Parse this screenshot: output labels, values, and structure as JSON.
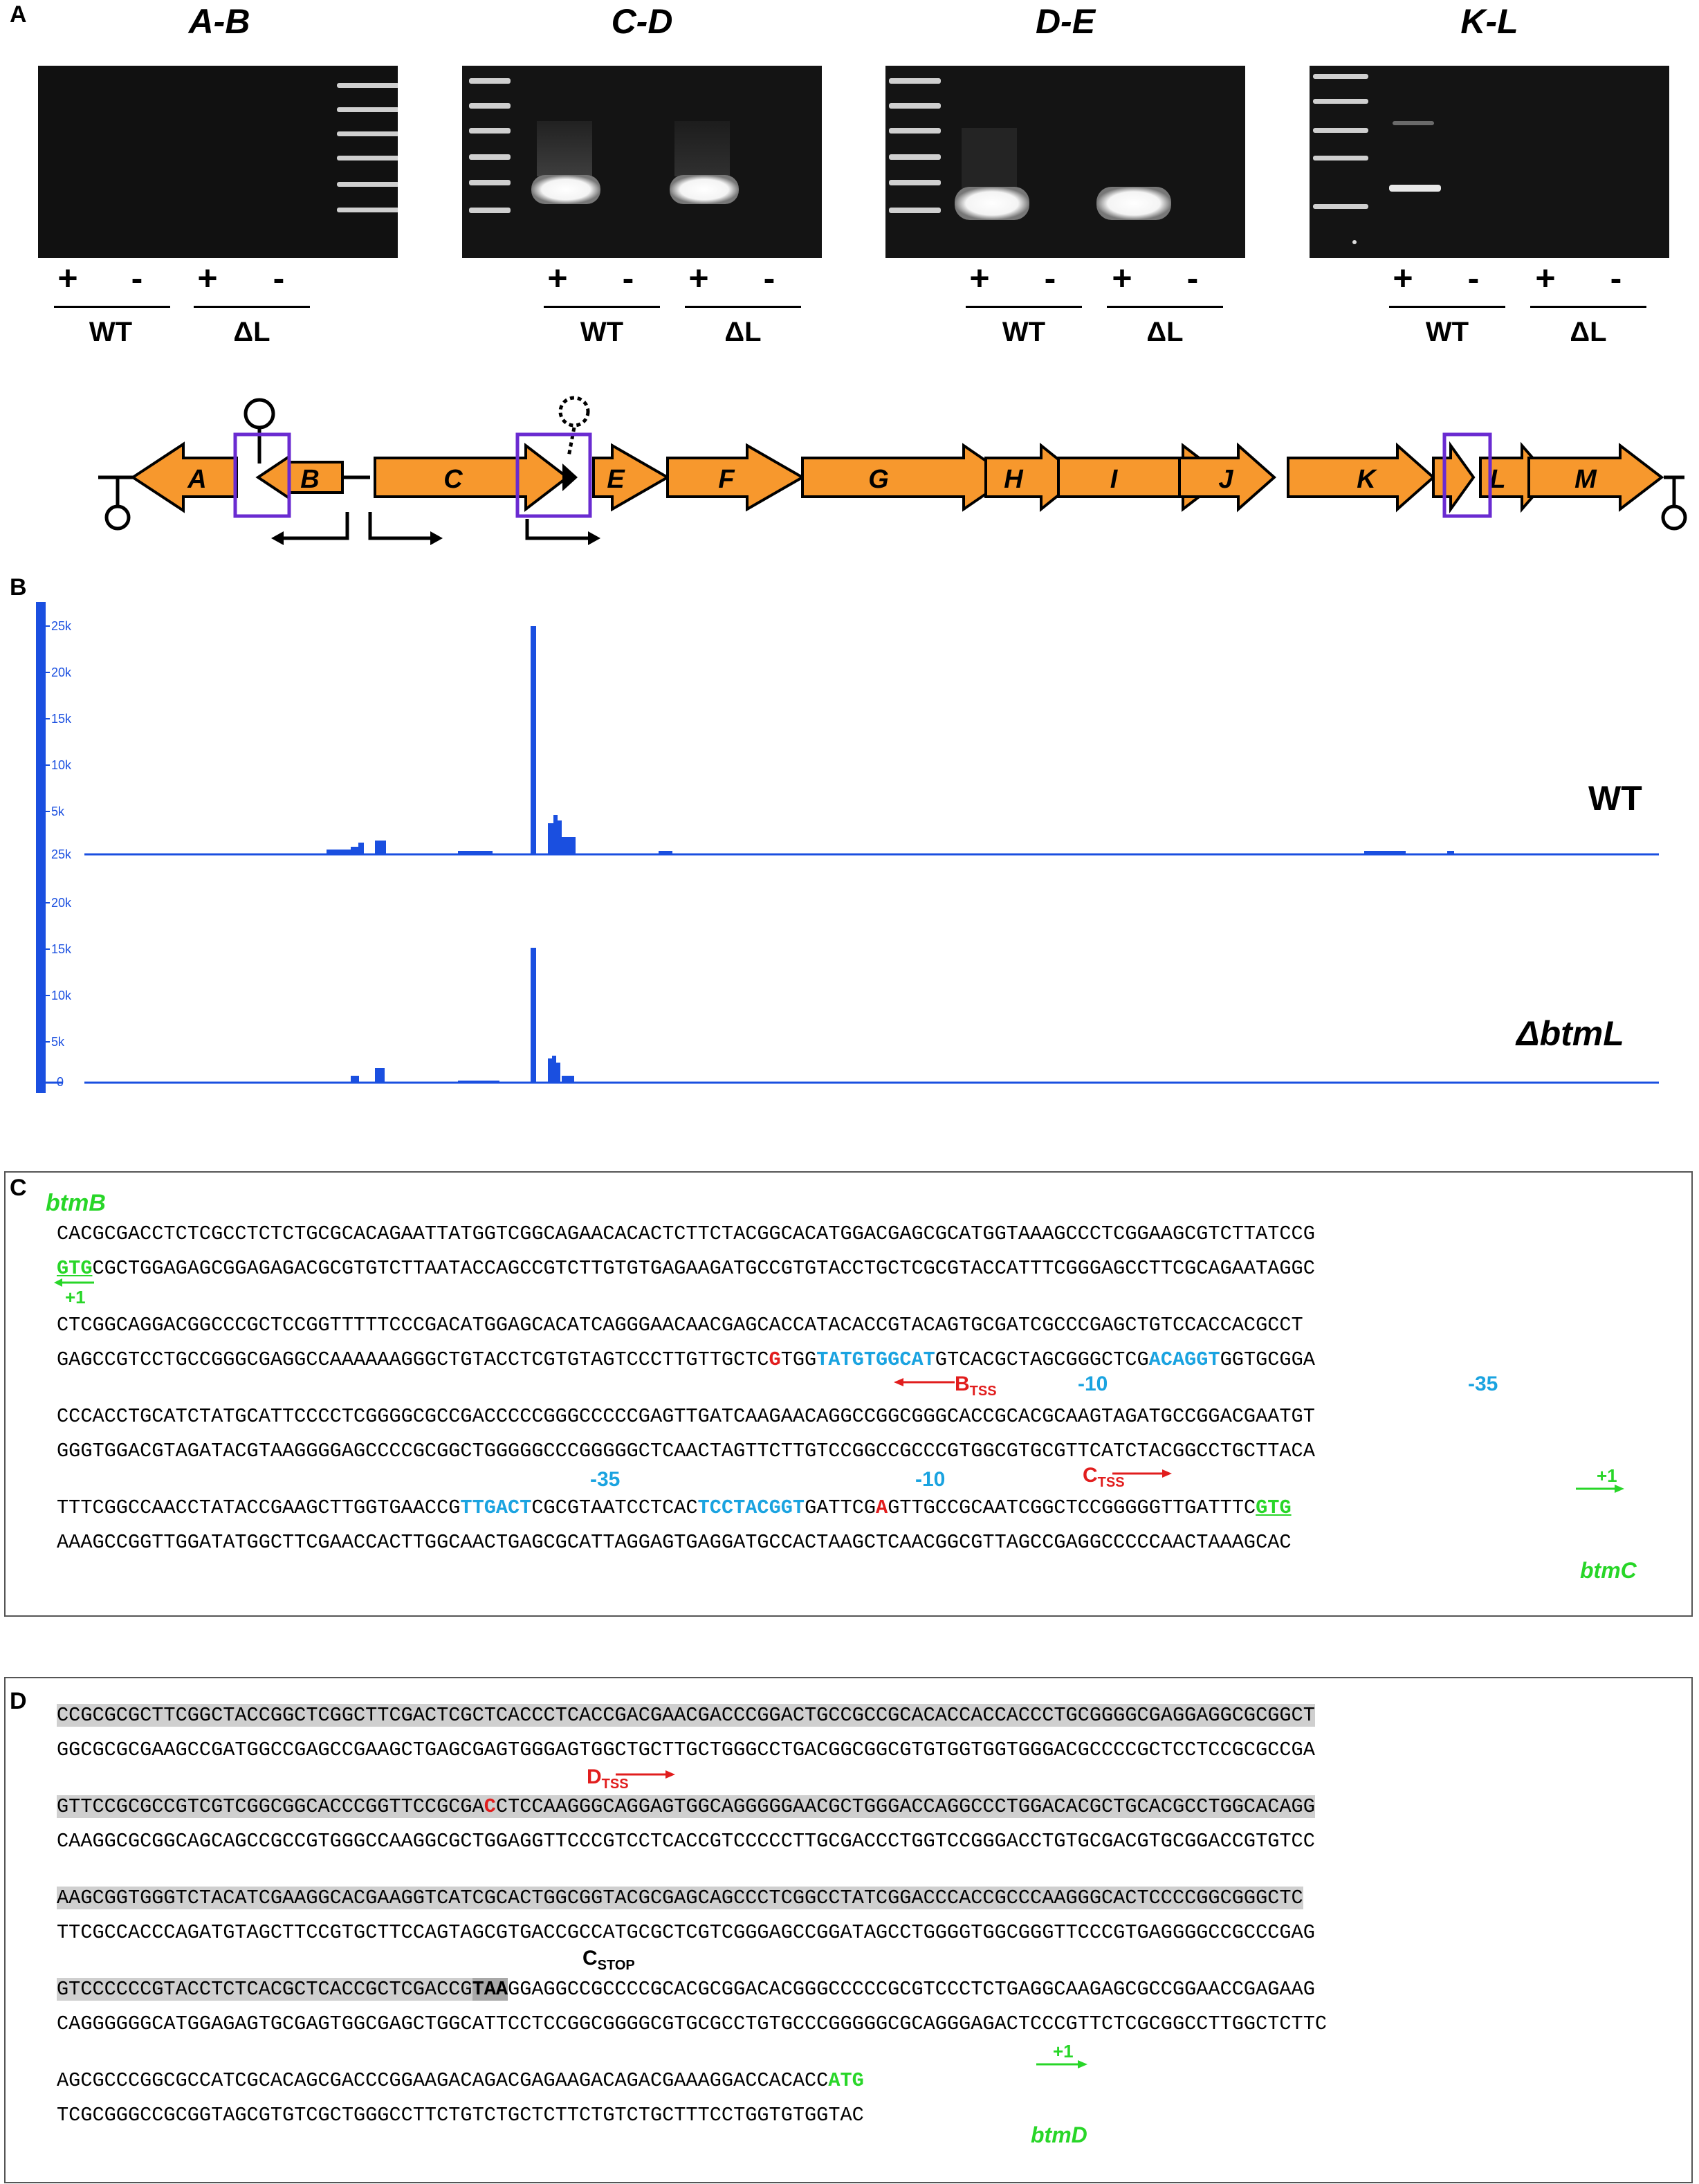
{
  "panel_a": {
    "letter": "A",
    "gels": [
      {
        "title": "A-B"
      },
      {
        "title": "C-D"
      },
      {
        "title": "D-E"
      },
      {
        "title": "K-L"
      }
    ],
    "plus": "+",
    "minus": "-",
    "wt": "WT",
    "dl": "ΔL",
    "genes": [
      "A",
      "B",
      "C",
      "D",
      "E",
      "F",
      "G",
      "H",
      "I",
      "J",
      "K",
      "L",
      "M"
    ]
  },
  "panel_b": {
    "letter": "B",
    "tracks": [
      {
        "label": "WT",
        "ticks": [
          "25k",
          "20k",
          "15k",
          "10k",
          "5k",
          "25k"
        ]
      },
      {
        "label": "ΔbtmL",
        "ticks": [
          "20k",
          "15k",
          "10k",
          "5k",
          "0"
        ]
      }
    ],
    "accent": "#1a4fe0"
  },
  "panel_c": {
    "letter": "C",
    "gene_top": "btmB",
    "gene_bottom": "btmC",
    "plus1": "+1",
    "b_tss": "B",
    "c_tss": "C",
    "tss_sub": "TSS",
    "m10": "-10",
    "m35": "-35",
    "r1_top": "CACGCGACCTCTCGCCTCTCTGCGCACAGAATTATGGTCGGCAGAACACACTCTTCTACGGCACATGGACGAGCGCATGGTAAAGCCCTCGGAAGCGTCTTATCCG",
    "r1_bot_start": "GTG",
    "r1_bot_rest": "CGCTGGAGAGCGGAGAGACGCGTGTCTTAATACCAGCCGTCTTGTGTGAGAAGATGCCGTGTACCTGCTCGCGTACCATTTCGGGAGCCTTCGCAGAATAGGC",
    "r2_top": "CTCGGCAGGACGGCCCGCTCCGGTTTTTCCCGACATGGAGCACATCAGGGAACAACGAGCACCATACACCGTACAGTGCGATCGCCCGAGCTGTCCACCACGCCT",
    "r2_bot_a": "GAGCCGTCCTGCCGGGCGAGGCCAAAAAAGGGCTGTACCTCGTGTAGTCCCTTGTTGCTC",
    "r2_bot_b": "G",
    "r2_bot_c": "TGG",
    "r2_bot_d": "TATGTGGCAT",
    "r2_bot_e": "GTCACGCTAGCGGGCTCG",
    "r2_bot_f": "ACAGGT",
    "r2_bot_g": "GGTGCGGA",
    "r3_top": "CCCACCTGCATCTATGCATTCCCCTCGGGGCGCCGACCCCCGGGCCCCCGAGTTGATCAAGAACAGGCCGGCGGGCACCGCACGCAAGTAGATGCCGGACGAATGT",
    "r3_bot": "GGGTGGACGTAGATACGTAAGGGGAGCCCCGCGGCTGGGGGCCCGGGGGCTCAACTAGTTCTTGTCCGGCCGCCCGTGGCGTGCGTTCATCTACGGCCTGCTTACA",
    "r4_top_a": "TTTCGGCCAACCTATACCGAAGCTTGGTGAACCG",
    "r4_top_b": "TTGACT",
    "r4_top_c": "CGCGTAATCCTCAC",
    "r4_top_d": "TCCTACGGT",
    "r4_top_e": "GATTCG",
    "r4_top_f": "A",
    "r4_top_g": "GTTGCCGCAATCGGCTCCGGGGGTTGATTTC",
    "r4_top_h": "GTG",
    "r4_bot": "AAAGCCGGTTGGATATGGCTTCGAACCACTTGGCAACTGAGCGCATTAGGAGTGAGGATGCCACTAAGCTCAACGGCGTTAGCCGAGGCCCCCAACTAAAGCAC"
  },
  "panel_d": {
    "letter": "D",
    "gene": "btmD",
    "plus1": "+1",
    "d_tss": "D",
    "tss_sub": "TSS",
    "c_stop": "C",
    "stop_sub": "STOP",
    "r1_top": "CCGCGCGCTTCGGCTACCGGCTCGGCTTCGACTCGCTCACCCTCACCGACGAACGACCCGGACTGCCGCCGCACACCACCACCCTGCGGGGCGAGGAGGCGCGGCT",
    "r1_bot": "GGCGCGCGAAGCCGATGGCCGAGCCGAAGCTGAGCGAGTGGGAGTGGCTGCTTGCTGGGCCTGACGGCGGCGTGTGGTGGTGGGACGCCCCGCTCCTCCGCGCCGA",
    "r2_top_a": "GTTCCGCGCCGTCGTCGGCGGCACCCGGTTCCGCGA",
    "r2_top_b": "C",
    "r2_top_c": "CTCCAAGGGCAGGAGTGGCAGGGGGAACGCTGGGACCAGGCCCTGGACACGCTGCACGCCTGGCACAGG",
    "r2_bot": "CAAGGCGCGGCAGCAGCCGCCGTGGGCCAAGGCGCTGGAGGTTCCCGTCCTCACCGTCCCCCTTGCGACCCTGGTCCGGGACCTGTGCGACGTGCGGACCGTGTCC",
    "r3_top": "AAGCGGTGGGTCTACATCGAAGGCACGAAGGTCATCGCACTGGCGGTACGCGAGCAGCCCTCGGCCTATCGGACCCACCGCCCAAGGGCACTCCCCGGCGGGCTC",
    "r3_bot": "TTCGCCACCCAGATGTAGCTTCCGTGCTTCCAGTAGCGTGACCGCCATGCGCTCGTCGGGAGCCGGATAGCCTGGGGTGGCGGGTTCCCGTGAGGGGCCGCCCGAG",
    "r4_top_a": "GTCCCCCCGTACCTCTCACGCTCACCGCTCGACCG",
    "r4_top_b": "TAA",
    "r4_top_c": "GGAGGCCGCCCCGCACGCGGACACGGGCCCCCGCGTCCCTCTGAGGCAAGAGCGCCGGAACCGAGAAG",
    "r4_bot": "CAGGGGGGCATGGAGAGTGCGAGTGGCGAGCTGGCATTCCTCCGGCGGGGCGTGCGCCTGTGCCCGGGGGCGCAGGGAGACTCCCGTTCTCGCGGCCTTGGCTCTTC",
    "r5_top_a": "AGCGCCCGGCGCCATCGCACAGCGACCCGGAAGACAGACGAGAAGACAGACGAAAGGACCACACC",
    "r5_top_b": "ATG",
    "r5_bot": "TCGCGGGCCGCGGTAGCGTGTCGCTGGGCCTTCTGTCTGCTCTTCTGTCTGCTTTCCTGGTGTGGTAC"
  }
}
